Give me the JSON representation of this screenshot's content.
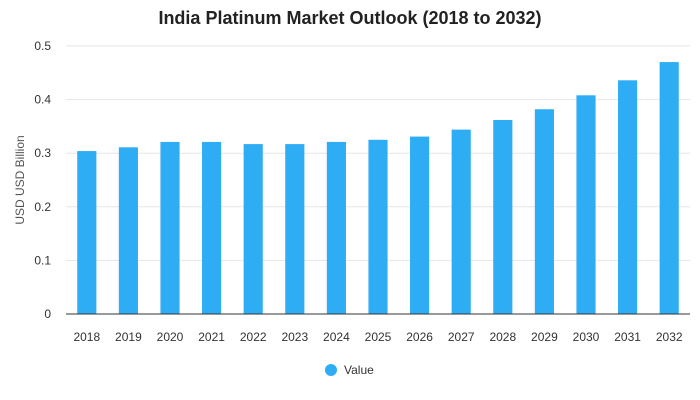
{
  "chart_data": {
    "type": "bar",
    "title": "India Platinum Market Outlook (2018 to 2032)",
    "xlabel": "",
    "ylabel": "USD USD Billion",
    "categories": [
      "2018",
      "2019",
      "2020",
      "2021",
      "2022",
      "2023",
      "2024",
      "2025",
      "2026",
      "2027",
      "2028",
      "2029",
      "2030",
      "2031",
      "2032"
    ],
    "series": [
      {
        "name": "Value",
        "color": "#2eadf5",
        "values": [
          0.304,
          0.311,
          0.321,
          0.321,
          0.317,
          0.317,
          0.321,
          0.325,
          0.331,
          0.344,
          0.362,
          0.382,
          0.408,
          0.436,
          0.47
        ]
      }
    ],
    "ylim": [
      0,
      0.5
    ],
    "yticks": [
      "0",
      "0.1",
      "0.2",
      "0.3",
      "0.4",
      "0.5"
    ],
    "grid": true,
    "legend_position": "bottom-center"
  }
}
